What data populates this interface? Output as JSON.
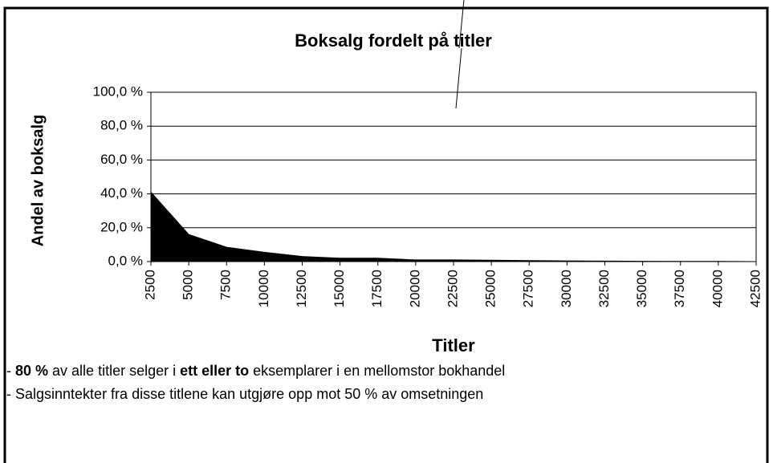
{
  "chart_data": {
    "type": "area",
    "title": "Boksalg fordelt på titler",
    "y_label": "Andel av boksalg",
    "x_label": "Titler",
    "x": [
      2500,
      5000,
      7500,
      10000,
      12500,
      15000,
      17500,
      20000,
      22500,
      25000,
      27500,
      30000,
      32500,
      35000,
      37500,
      40000,
      42500
    ],
    "values": [
      41,
      16,
      8.5,
      5.5,
      3,
      2,
      2,
      1,
      1,
      0.8,
      0.6,
      0.4,
      0.3,
      0.2,
      0.1,
      0.1,
      0
    ],
    "color": "#000000",
    "xlim": [
      2500,
      42500
    ],
    "xticks": [
      2500,
      5000,
      7500,
      10000,
      12500,
      15000,
      17500,
      20000,
      22500,
      25000,
      27500,
      30000,
      32500,
      35000,
      37500,
      40000,
      42500
    ],
    "ylim": [
      0,
      100
    ],
    "yticks": [
      {
        "value": 0,
        "label": "0,0 %"
      },
      {
        "value": 20,
        "label": "20,0 %"
      },
      {
        "value": 40,
        "label": "40,0 %"
      },
      {
        "value": 60,
        "label": "60,0 %"
      },
      {
        "value": 80,
        "label": "80,0 %"
      },
      {
        "value": 100,
        "label": "100,0 %"
      }
    ],
    "grid": true,
    "notes": [
      [
        {
          "text": "- "
        },
        {
          "text": "80 %",
          "bold": true
        },
        {
          "text": " av alle titler selger i "
        },
        {
          "text": "ett eller to",
          "bold": true
        },
        {
          "text": " eksemplarer i en mellomstor bokhandel"
        }
      ],
      [
        {
          "text": "- Salgsinntekter fra disse titlene kan utgjøre opp mot 50 % av omsetningen"
        }
      ]
    ]
  }
}
